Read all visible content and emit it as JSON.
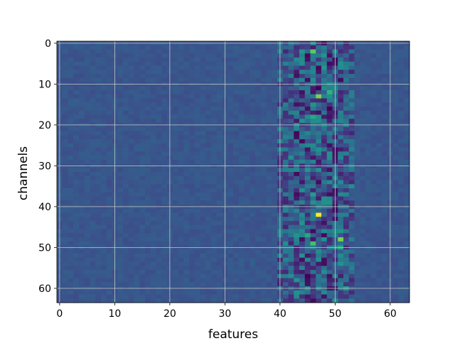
{
  "chart_data": {
    "type": "heatmap",
    "title": "",
    "xlabel": "features",
    "ylabel": "channels",
    "n_cols": 64,
    "n_rows": 64,
    "x_ticks": [
      "0",
      "10",
      "20",
      "30",
      "40",
      "50",
      "60"
    ],
    "y_ticks": [
      "0",
      "10",
      "20",
      "30",
      "40",
      "50",
      "60"
    ],
    "grid": true,
    "colormap": "viridis",
    "colors": {
      "background": "#3b528b",
      "grid": "#c8c8c8"
    },
    "hotspots": [
      {
        "x": 47,
        "y": 42,
        "value": 1.0
      },
      {
        "x": 46,
        "y": 2,
        "value": 0.75
      },
      {
        "x": 47,
        "y": 13,
        "value": 0.8
      },
      {
        "x": 49,
        "y": 12,
        "value": 0.65
      },
      {
        "x": 46,
        "y": 18,
        "value": 0.6
      },
      {
        "x": 51,
        "y": 48,
        "value": 0.8
      },
      {
        "x": 46,
        "y": 49,
        "value": 0.7
      },
      {
        "x": 45,
        "y": 47,
        "value": 0.6
      },
      {
        "x": 51,
        "y": 50,
        "value": 0.6
      },
      {
        "x": 52,
        "y": 60,
        "value": 0.55
      },
      {
        "x": 46,
        "y": 37,
        "value": 0.55
      },
      {
        "x": 44,
        "y": 36,
        "value": 0.5
      },
      {
        "x": 42,
        "y": 28,
        "value": 0.5
      },
      {
        "x": 42,
        "y": 57,
        "value": 0.5
      },
      {
        "x": 53,
        "y": 35,
        "value": 0.5
      },
      {
        "x": 41,
        "y": 49,
        "value": 0.5
      }
    ],
    "low_spots": [
      {
        "x": 47,
        "y": 11,
        "value": 0.0
      },
      {
        "x": 49,
        "y": 16,
        "value": 0.0
      },
      {
        "x": 45,
        "y": 16,
        "value": 0.05
      },
      {
        "x": 45,
        "y": 57,
        "value": 0.0
      },
      {
        "x": 48,
        "y": 44,
        "value": 0.05
      },
      {
        "x": 49,
        "y": 31,
        "value": 0.05
      },
      {
        "x": 48,
        "y": 62,
        "value": 0.05
      },
      {
        "x": 49,
        "y": 3,
        "value": 0.05
      }
    ]
  }
}
